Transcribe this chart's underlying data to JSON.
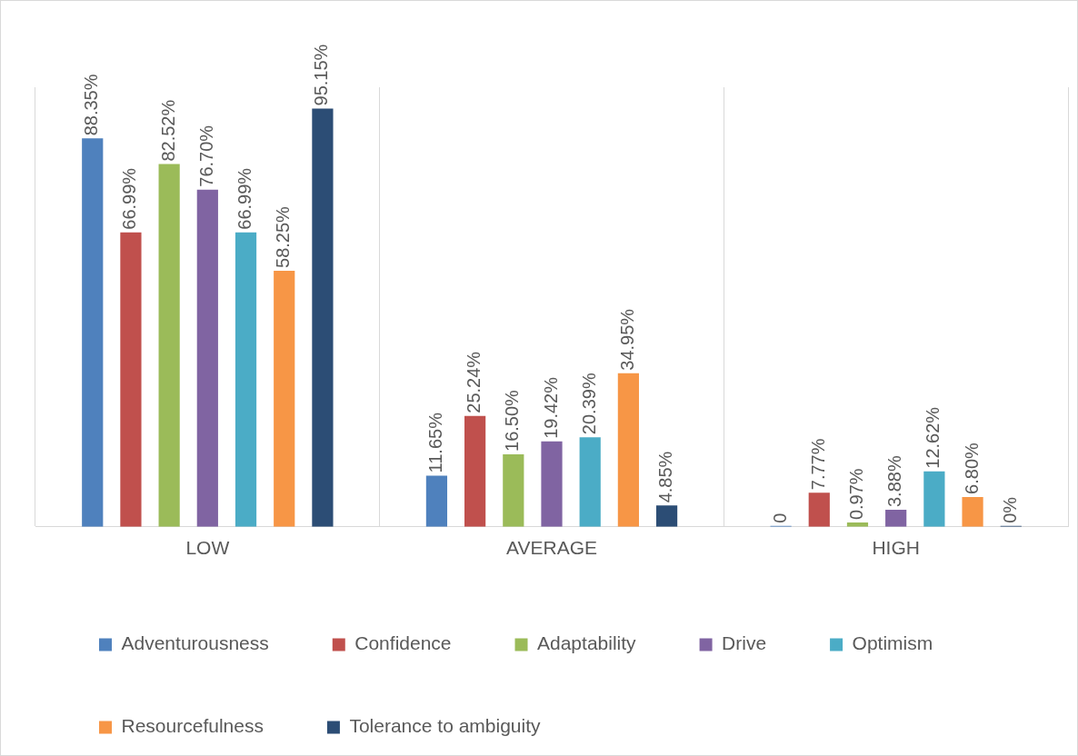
{
  "chart_data": {
    "type": "bar",
    "categories": [
      "LOW",
      "AVERAGE",
      "HIGH"
    ],
    "ylim": [
      0,
      100
    ],
    "grid": "x",
    "legend": "bottom",
    "data_labels": true,
    "series": [
      {
        "name": "Adventurousness",
        "color": "#4f81bd",
        "values": [
          88.35,
          11.65,
          0
        ],
        "value_labels": [
          "88.35%",
          "11.65%",
          "0"
        ]
      },
      {
        "name": "Confidence",
        "color": "#c0504d",
        "values": [
          66.99,
          25.24,
          7.77
        ],
        "value_labels": [
          "66.99%",
          "25.24%",
          "7.77%"
        ]
      },
      {
        "name": "Adaptability",
        "color": "#9bbb59",
        "values": [
          82.52,
          16.5,
          0.97
        ],
        "value_labels": [
          "82.52%",
          "16.50%",
          "0.97%"
        ]
      },
      {
        "name": "Drive",
        "color": "#8064a2",
        "values": [
          76.7,
          19.42,
          3.88
        ],
        "value_labels": [
          "76.70%",
          "19.42%",
          "3.88%"
        ]
      },
      {
        "name": "Optimism",
        "color": "#4bacc6",
        "values": [
          66.99,
          20.39,
          12.62
        ],
        "value_labels": [
          "66.99%",
          "20.39%",
          "12.62%"
        ]
      },
      {
        "name": "Resourcefulness",
        "color": "#f79646",
        "values": [
          58.25,
          34.95,
          6.8
        ],
        "value_labels": [
          "58.25%",
          "34.95%",
          "6.80%"
        ]
      },
      {
        "name": "Tolerance to ambiguity",
        "color": "#2c4d75",
        "values": [
          95.15,
          4.85,
          0
        ],
        "value_labels": [
          "95.15%",
          "4.85%",
          "0%"
        ]
      }
    ]
  }
}
